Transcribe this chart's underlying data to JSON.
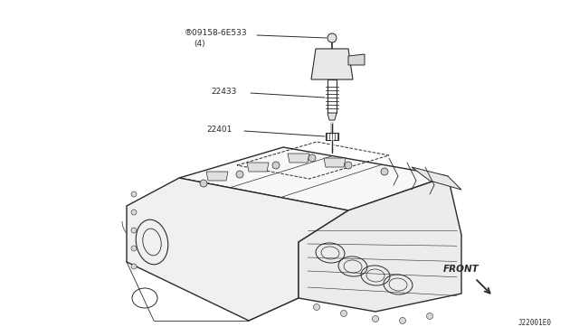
{
  "bg_color": "#ffffff",
  "labels": {
    "part1_code": "09158-6E533",
    "part1_qty": "(4)",
    "part2_code": "22433",
    "part3_code": "22401",
    "front_label": "FRONT",
    "doc_code": "J22001E0"
  },
  "line_color": "#2a2a2a",
  "font_size_labels": 6.5,
  "font_size_doc": 5.5
}
